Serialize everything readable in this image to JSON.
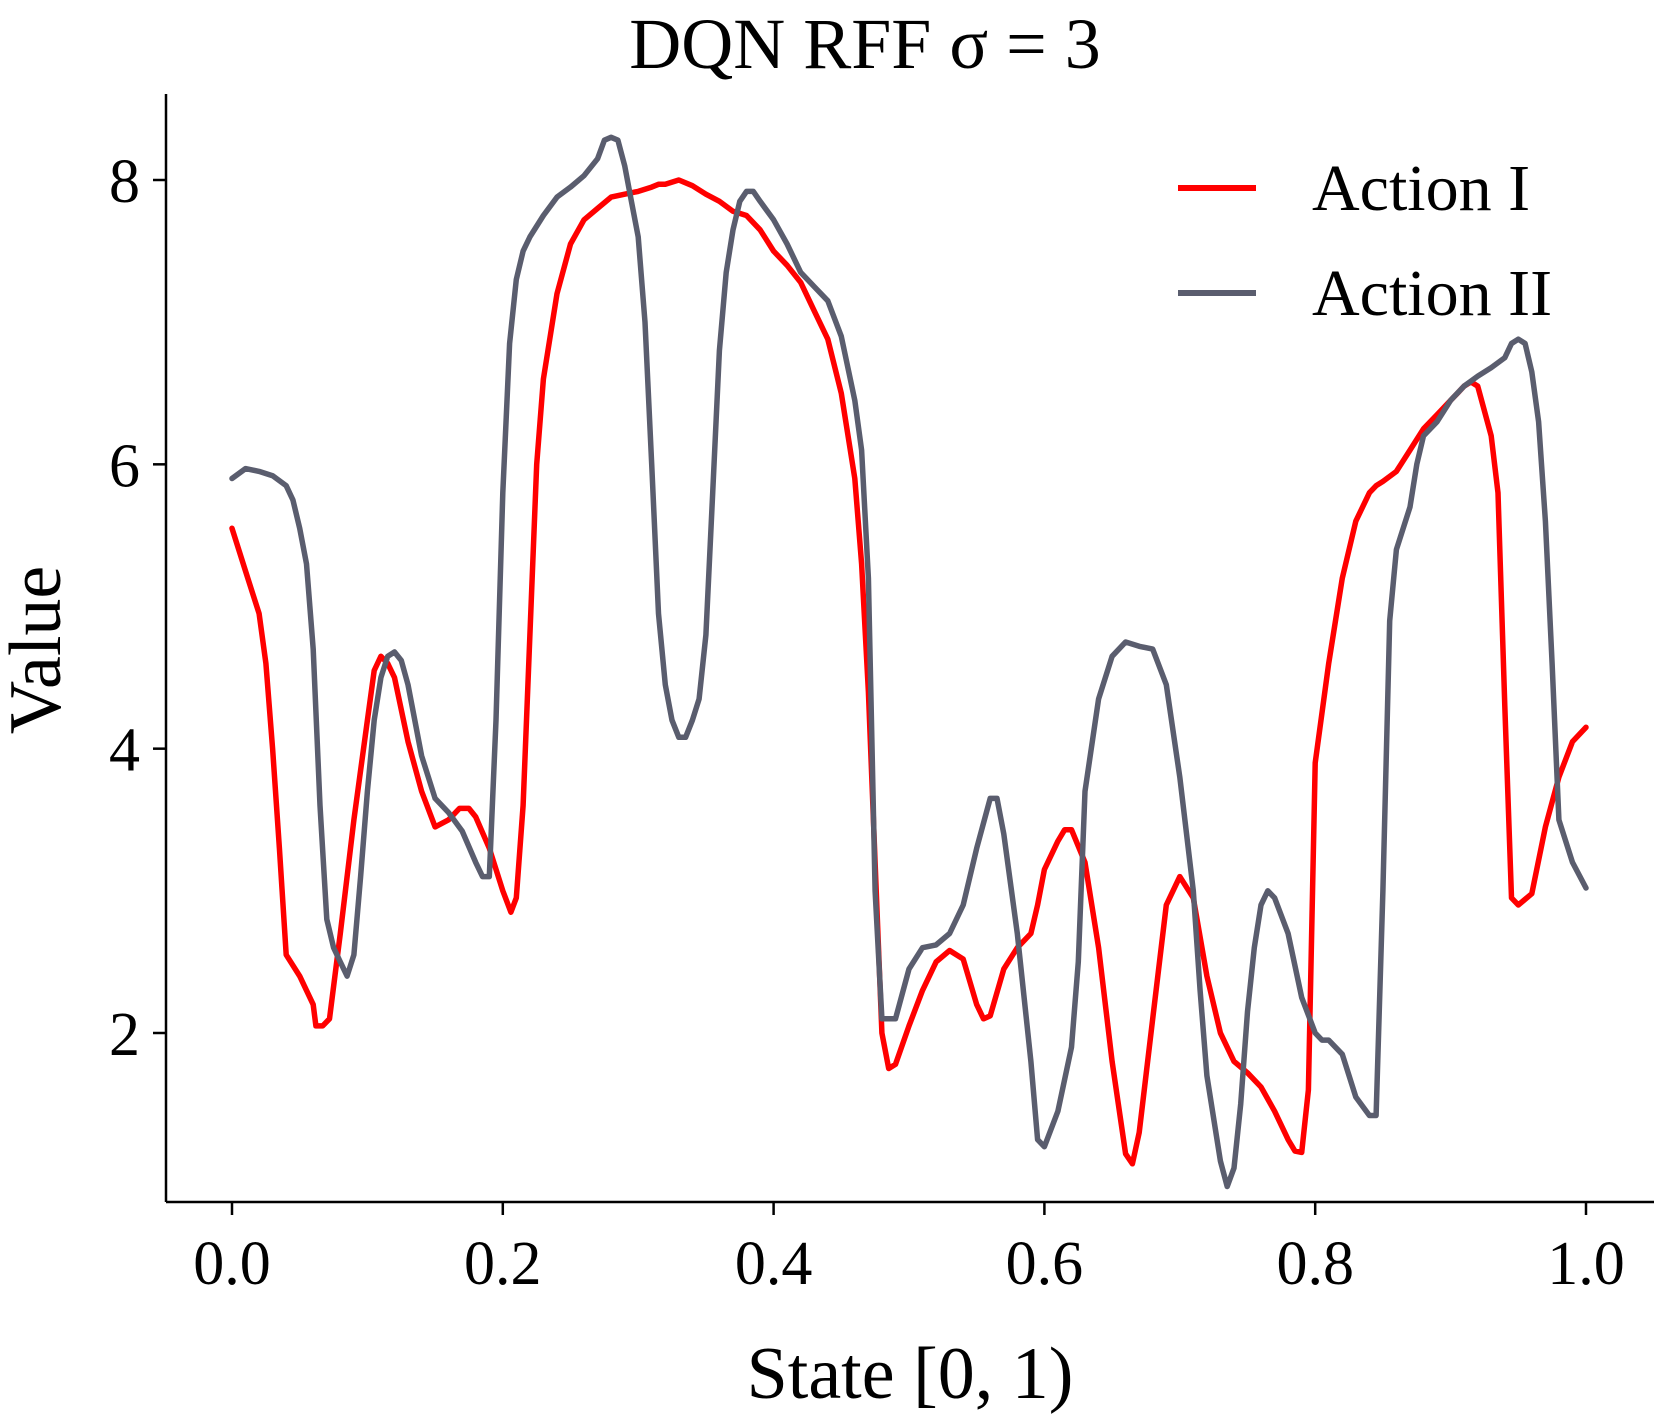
{
  "chart_data": {
    "type": "line",
    "title": "DQN RFF σ = 3",
    "xlabel": "State [0, 1)",
    "ylabel": "Value",
    "xlim": [
      -0.048,
      1.048
    ],
    "ylim": [
      0.45,
      8.65
    ],
    "xticks": [
      0.0,
      0.2,
      0.4,
      0.6,
      0.8,
      1.0
    ],
    "xtick_labels": [
      "0.0",
      "0.2",
      "0.4",
      "0.6",
      "0.8",
      "1.0"
    ],
    "yticks": [
      2,
      4,
      6,
      8
    ],
    "ytick_labels": [
      "2",
      "4",
      "6",
      "8"
    ],
    "grid": false,
    "legend_position": "top-right",
    "series": [
      {
        "name": "Action I",
        "color": "#ff0000",
        "points": [
          [
            0.0,
            5.55
          ],
          [
            0.01,
            5.25
          ],
          [
            0.02,
            4.95
          ],
          [
            0.025,
            4.6
          ],
          [
            0.03,
            4.0
          ],
          [
            0.035,
            3.3
          ],
          [
            0.04,
            2.55
          ],
          [
            0.05,
            2.4
          ],
          [
            0.055,
            2.3
          ],
          [
            0.06,
            2.2
          ],
          [
            0.062,
            2.05
          ],
          [
            0.067,
            2.05
          ],
          [
            0.072,
            2.1
          ],
          [
            0.08,
            2.7
          ],
          [
            0.09,
            3.5
          ],
          [
            0.1,
            4.2
          ],
          [
            0.105,
            4.55
          ],
          [
            0.11,
            4.65
          ],
          [
            0.115,
            4.6
          ],
          [
            0.12,
            4.5
          ],
          [
            0.13,
            4.05
          ],
          [
            0.14,
            3.7
          ],
          [
            0.15,
            3.45
          ],
          [
            0.16,
            3.5
          ],
          [
            0.168,
            3.58
          ],
          [
            0.175,
            3.58
          ],
          [
            0.18,
            3.52
          ],
          [
            0.19,
            3.3
          ],
          [
            0.2,
            3.0
          ],
          [
            0.206,
            2.85
          ],
          [
            0.21,
            2.95
          ],
          [
            0.215,
            3.6
          ],
          [
            0.22,
            4.8
          ],
          [
            0.225,
            6.0
          ],
          [
            0.23,
            6.6
          ],
          [
            0.24,
            7.2
          ],
          [
            0.25,
            7.55
          ],
          [
            0.26,
            7.72
          ],
          [
            0.27,
            7.8
          ],
          [
            0.28,
            7.88
          ],
          [
            0.29,
            7.9
          ],
          [
            0.3,
            7.92
          ],
          [
            0.31,
            7.95
          ],
          [
            0.315,
            7.97
          ],
          [
            0.32,
            7.97
          ],
          [
            0.33,
            8.0
          ],
          [
            0.34,
            7.96
          ],
          [
            0.35,
            7.9
          ],
          [
            0.36,
            7.85
          ],
          [
            0.37,
            7.78
          ],
          [
            0.38,
            7.75
          ],
          [
            0.39,
            7.65
          ],
          [
            0.4,
            7.5
          ],
          [
            0.41,
            7.4
          ],
          [
            0.42,
            7.28
          ],
          [
            0.43,
            7.08
          ],
          [
            0.44,
            6.88
          ],
          [
            0.45,
            6.5
          ],
          [
            0.46,
            5.9
          ],
          [
            0.465,
            5.3
          ],
          [
            0.47,
            4.4
          ],
          [
            0.475,
            3.2
          ],
          [
            0.48,
            2.0
          ],
          [
            0.485,
            1.75
          ],
          [
            0.49,
            1.78
          ],
          [
            0.5,
            2.05
          ],
          [
            0.51,
            2.3
          ],
          [
            0.52,
            2.5
          ],
          [
            0.53,
            2.58
          ],
          [
            0.54,
            2.52
          ],
          [
            0.55,
            2.2
          ],
          [
            0.555,
            2.1
          ],
          [
            0.56,
            2.12
          ],
          [
            0.57,
            2.45
          ],
          [
            0.58,
            2.6
          ],
          [
            0.59,
            2.7
          ],
          [
            0.595,
            2.9
          ],
          [
            0.6,
            3.15
          ],
          [
            0.61,
            3.35
          ],
          [
            0.615,
            3.43
          ],
          [
            0.62,
            3.43
          ],
          [
            0.63,
            3.2
          ],
          [
            0.64,
            2.6
          ],
          [
            0.65,
            1.8
          ],
          [
            0.66,
            1.15
          ],
          [
            0.665,
            1.08
          ],
          [
            0.67,
            1.3
          ],
          [
            0.68,
            2.1
          ],
          [
            0.69,
            2.9
          ],
          [
            0.7,
            3.1
          ],
          [
            0.71,
            2.95
          ],
          [
            0.72,
            2.4
          ],
          [
            0.73,
            2.0
          ],
          [
            0.74,
            1.8
          ],
          [
            0.75,
            1.72
          ],
          [
            0.76,
            1.62
          ],
          [
            0.77,
            1.45
          ],
          [
            0.78,
            1.25
          ],
          [
            0.785,
            1.17
          ],
          [
            0.79,
            1.16
          ],
          [
            0.795,
            1.6
          ],
          [
            0.8,
            3.9
          ],
          [
            0.81,
            4.6
          ],
          [
            0.82,
            5.2
          ],
          [
            0.83,
            5.6
          ],
          [
            0.84,
            5.8
          ],
          [
            0.845,
            5.85
          ],
          [
            0.85,
            5.88
          ],
          [
            0.86,
            5.95
          ],
          [
            0.87,
            6.1
          ],
          [
            0.88,
            6.25
          ],
          [
            0.89,
            6.35
          ],
          [
            0.9,
            6.45
          ],
          [
            0.905,
            6.5
          ],
          [
            0.91,
            6.55
          ],
          [
            0.915,
            6.58
          ],
          [
            0.92,
            6.55
          ],
          [
            0.93,
            6.2
          ],
          [
            0.935,
            5.8
          ],
          [
            0.94,
            4.3
          ],
          [
            0.945,
            2.95
          ],
          [
            0.95,
            2.9
          ],
          [
            0.96,
            2.98
          ],
          [
            0.97,
            3.45
          ],
          [
            0.98,
            3.8
          ],
          [
            0.99,
            4.05
          ],
          [
            1.0,
            4.15
          ]
        ]
      },
      {
        "name": "Action II",
        "color": "#5a5d6e",
        "points": [
          [
            0.0,
            5.9
          ],
          [
            0.01,
            5.97
          ],
          [
            0.02,
            5.95
          ],
          [
            0.03,
            5.92
          ],
          [
            0.04,
            5.85
          ],
          [
            0.045,
            5.75
          ],
          [
            0.05,
            5.55
          ],
          [
            0.055,
            5.3
          ],
          [
            0.06,
            4.7
          ],
          [
            0.065,
            3.6
          ],
          [
            0.07,
            2.8
          ],
          [
            0.075,
            2.6
          ],
          [
            0.08,
            2.5
          ],
          [
            0.085,
            2.4
          ],
          [
            0.09,
            2.55
          ],
          [
            0.095,
            3.1
          ],
          [
            0.1,
            3.7
          ],
          [
            0.105,
            4.2
          ],
          [
            0.11,
            4.5
          ],
          [
            0.115,
            4.65
          ],
          [
            0.12,
            4.68
          ],
          [
            0.125,
            4.62
          ],
          [
            0.13,
            4.45
          ],
          [
            0.14,
            3.95
          ],
          [
            0.15,
            3.65
          ],
          [
            0.16,
            3.55
          ],
          [
            0.17,
            3.42
          ],
          [
            0.18,
            3.2
          ],
          [
            0.185,
            3.1
          ],
          [
            0.19,
            3.1
          ],
          [
            0.195,
            4.2
          ],
          [
            0.2,
            5.8
          ],
          [
            0.205,
            6.85
          ],
          [
            0.21,
            7.3
          ],
          [
            0.215,
            7.5
          ],
          [
            0.22,
            7.6
          ],
          [
            0.23,
            7.75
          ],
          [
            0.24,
            7.88
          ],
          [
            0.25,
            7.95
          ],
          [
            0.26,
            8.03
          ],
          [
            0.27,
            8.15
          ],
          [
            0.275,
            8.28
          ],
          [
            0.28,
            8.3
          ],
          [
            0.285,
            8.28
          ],
          [
            0.29,
            8.1
          ],
          [
            0.295,
            7.85
          ],
          [
            0.3,
            7.6
          ],
          [
            0.305,
            7.0
          ],
          [
            0.31,
            6.0
          ],
          [
            0.315,
            4.95
          ],
          [
            0.32,
            4.45
          ],
          [
            0.325,
            4.2
          ],
          [
            0.33,
            4.08
          ],
          [
            0.335,
            4.08
          ],
          [
            0.34,
            4.2
          ],
          [
            0.345,
            4.35
          ],
          [
            0.35,
            4.8
          ],
          [
            0.355,
            5.8
          ],
          [
            0.36,
            6.8
          ],
          [
            0.365,
            7.35
          ],
          [
            0.37,
            7.65
          ],
          [
            0.375,
            7.85
          ],
          [
            0.38,
            7.92
          ],
          [
            0.385,
            7.92
          ],
          [
            0.39,
            7.85
          ],
          [
            0.4,
            7.72
          ],
          [
            0.41,
            7.55
          ],
          [
            0.42,
            7.35
          ],
          [
            0.43,
            7.25
          ],
          [
            0.44,
            7.15
          ],
          [
            0.45,
            6.9
          ],
          [
            0.46,
            6.45
          ],
          [
            0.465,
            6.1
          ],
          [
            0.47,
            5.2
          ],
          [
            0.475,
            3.0
          ],
          [
            0.48,
            2.1
          ],
          [
            0.49,
            2.1
          ],
          [
            0.5,
            2.45
          ],
          [
            0.51,
            2.6
          ],
          [
            0.52,
            2.62
          ],
          [
            0.53,
            2.7
          ],
          [
            0.54,
            2.9
          ],
          [
            0.55,
            3.3
          ],
          [
            0.56,
            3.65
          ],
          [
            0.565,
            3.65
          ],
          [
            0.57,
            3.4
          ],
          [
            0.58,
            2.7
          ],
          [
            0.59,
            1.8
          ],
          [
            0.595,
            1.25
          ],
          [
            0.6,
            1.2
          ],
          [
            0.61,
            1.45
          ],
          [
            0.62,
            1.9
          ],
          [
            0.625,
            2.5
          ],
          [
            0.63,
            3.7
          ],
          [
            0.64,
            4.35
          ],
          [
            0.65,
            4.65
          ],
          [
            0.66,
            4.75
          ],
          [
            0.67,
            4.72
          ],
          [
            0.68,
            4.7
          ],
          [
            0.69,
            4.45
          ],
          [
            0.7,
            3.8
          ],
          [
            0.71,
            3.0
          ],
          [
            0.715,
            2.3
          ],
          [
            0.72,
            1.7
          ],
          [
            0.73,
            1.1
          ],
          [
            0.735,
            0.92
          ],
          [
            0.74,
            1.05
          ],
          [
            0.745,
            1.5
          ],
          [
            0.75,
            2.15
          ],
          [
            0.755,
            2.6
          ],
          [
            0.76,
            2.9
          ],
          [
            0.765,
            3.0
          ],
          [
            0.77,
            2.95
          ],
          [
            0.78,
            2.7
          ],
          [
            0.79,
            2.25
          ],
          [
            0.8,
            2.0
          ],
          [
            0.805,
            1.95
          ],
          [
            0.81,
            1.95
          ],
          [
            0.82,
            1.85
          ],
          [
            0.83,
            1.55
          ],
          [
            0.84,
            1.42
          ],
          [
            0.845,
            1.42
          ],
          [
            0.85,
            3.0
          ],
          [
            0.855,
            4.9
          ],
          [
            0.86,
            5.4
          ],
          [
            0.87,
            5.7
          ],
          [
            0.875,
            6.0
          ],
          [
            0.88,
            6.2
          ],
          [
            0.89,
            6.3
          ],
          [
            0.9,
            6.45
          ],
          [
            0.91,
            6.55
          ],
          [
            0.92,
            6.62
          ],
          [
            0.93,
            6.68
          ],
          [
            0.94,
            6.75
          ],
          [
            0.945,
            6.85
          ],
          [
            0.95,
            6.88
          ],
          [
            0.955,
            6.85
          ],
          [
            0.96,
            6.65
          ],
          [
            0.965,
            6.3
          ],
          [
            0.97,
            5.6
          ],
          [
            0.975,
            4.6
          ],
          [
            0.98,
            3.5
          ],
          [
            0.99,
            3.2
          ],
          [
            1.0,
            3.02
          ]
        ]
      }
    ]
  }
}
